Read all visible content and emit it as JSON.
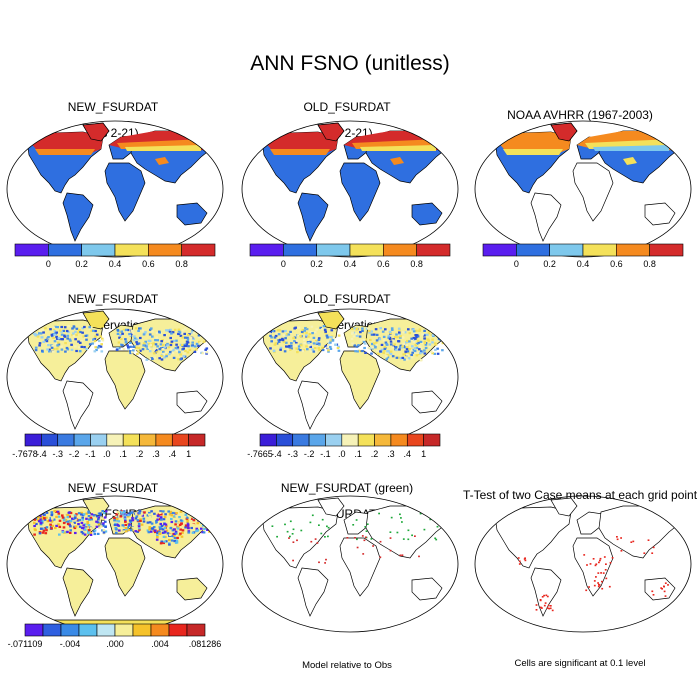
{
  "figure_title": "ANN FSNO (unitless)",
  "panels": {
    "p1": {
      "title_line1": "NEW_FSURDAT",
      "title_line2": "(yrs 2-21)"
    },
    "p2": {
      "title_line1": "OLD_FSURDAT",
      "title_line2": "(yrs 2-21)"
    },
    "p3": {
      "title_line1": "NOAA AVHRR (1967-2003)",
      "title_line2": ""
    },
    "p4": {
      "title_line1": "NEW_FSURDAT",
      "title_line2": "- Observations"
    },
    "p5": {
      "title_line1": "OLD_FSURDAT",
      "title_line2": "- Observations"
    },
    "p7": {
      "title_line1": "NEW_FSURDAT",
      "title_line2": "- OLD_FSURDAT"
    },
    "p8": {
      "title_line1": "NEW_FSURDAT (green)",
      "title_line2": "OLD_FSURDAT (red)",
      "caption": "Model relative to Obs"
    },
    "p9": {
      "title_line1": "T-Test of two Case means at each grid point",
      "title_line2": "",
      "caption": "Cells are significant at 0.1 level"
    }
  },
  "chart_data": [
    {
      "type": "heatmap",
      "panel": "p1",
      "colorbar": {
        "colors": [
          "#5a1eef",
          "#2f6fe0",
          "#7ec8ec",
          "#f4e15a",
          "#f58a1f",
          "#d42b2b"
        ],
        "tick_labels": [
          "0",
          "0.2",
          "0.4",
          "0.6",
          "0.8"
        ]
      }
    },
    {
      "type": "heatmap",
      "panel": "p2",
      "colorbar": {
        "colors": [
          "#5a1eef",
          "#2f6fe0",
          "#7ec8ec",
          "#f4e15a",
          "#f58a1f",
          "#d42b2b"
        ],
        "tick_labels": [
          "0",
          "0.2",
          "0.4",
          "0.6",
          "0.8"
        ]
      }
    },
    {
      "type": "heatmap",
      "panel": "p3",
      "colorbar": {
        "colors": [
          "#5a1eef",
          "#2f6fe0",
          "#7ec8ec",
          "#f4e15a",
          "#f58a1f",
          "#d42b2b"
        ],
        "tick_labels": [
          "0",
          "0.2",
          "0.4",
          "0.6",
          "0.8"
        ]
      }
    },
    {
      "type": "heatmap",
      "panel": "p4",
      "colorbar": {
        "colors": [
          "#3b1ed8",
          "#2a4fd8",
          "#3a7ae0",
          "#5aa6ea",
          "#9ad0f0",
          "#f6f2b8",
          "#f4e15a",
          "#f5b83a",
          "#f58a1f",
          "#e8461e",
          "#c62828"
        ],
        "tick_labels": [
          "-.7678",
          "-.4",
          "-.3",
          "-.2",
          "-.1",
          ".0",
          ".1",
          ".2",
          ".3",
          ".4",
          "1"
        ]
      }
    },
    {
      "type": "heatmap",
      "panel": "p5",
      "colorbar": {
        "colors": [
          "#3b1ed8",
          "#2a4fd8",
          "#3a7ae0",
          "#5aa6ea",
          "#9ad0f0",
          "#f6f2b8",
          "#f4e15a",
          "#f5b83a",
          "#f58a1f",
          "#e8461e",
          "#c62828"
        ],
        "tick_labels": [
          "-.7665",
          "-.4",
          "-.3",
          "-.2",
          "-.1",
          ".0",
          ".1",
          ".2",
          ".3",
          ".4",
          "1"
        ]
      }
    },
    {
      "type": "heatmap",
      "panel": "p7",
      "colorbar": {
        "colors": [
          "#5a1eef",
          "#2f5fe0",
          "#3a8ae6",
          "#5cc0ee",
          "#bfe6f2",
          "#f6ef9a",
          "#f5c22a",
          "#f58a1f",
          "#e8261e",
          "#c62828"
        ],
        "tick_labels": [
          "-.071109",
          "-.004",
          ".000",
          ".004",
          ".081286"
        ]
      }
    }
  ]
}
